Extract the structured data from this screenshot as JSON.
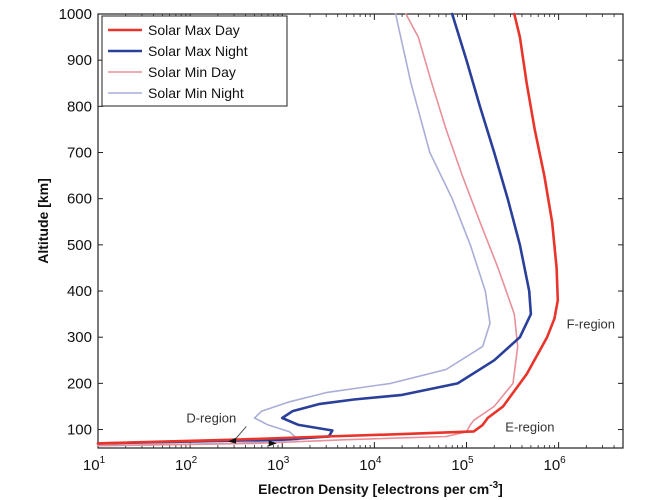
{
  "chart_data": {
    "type": "line",
    "xlabel": "Electron Density [electrons per cm",
    "xlabel_exp": "-3",
    "xlabel_end": "]",
    "ylabel": "Altitude [km]",
    "x_scale": "log",
    "xlim": [
      10,
      5000000
    ],
    "ylim": [
      60,
      1000
    ],
    "x_ticks": [
      {
        "base": "10",
        "exp": "1",
        "value": 10
      },
      {
        "base": "10",
        "exp": "2",
        "value": 100
      },
      {
        "base": "10",
        "exp": "3",
        "value": 1000
      },
      {
        "base": "10",
        "exp": "4",
        "value": 10000
      },
      {
        "base": "10",
        "exp": "5",
        "value": 100000
      },
      {
        "base": "10",
        "exp": "6",
        "value": 1000000
      }
    ],
    "y_ticks": [
      "100",
      "200",
      "300",
      "400",
      "500",
      "600",
      "700",
      "800",
      "900",
      "1000"
    ],
    "grid": false,
    "legend_position": "top-left",
    "series": [
      {
        "name": "Solar Max Day",
        "color": "#e8342a",
        "x": [
          10,
          300,
          3000,
          20000,
          120000,
          150000,
          170000,
          250000,
          450000,
          750000,
          900000,
          980000,
          950000,
          850000,
          700000,
          550000,
          450000,
          380000,
          330000
        ],
        "y": [
          70,
          78,
          85,
          90,
          96,
          110,
          125,
          150,
          220,
          300,
          340,
          380,
          450,
          550,
          650,
          750,
          850,
          950,
          1000
        ]
      },
      {
        "name": "Solar Max Night",
        "color": "#2a3f9a",
        "x": [
          10,
          1000,
          3200,
          3500,
          1500,
          1000,
          1300,
          2500,
          6000,
          20000,
          80000,
          200000,
          380000,
          500000,
          480000,
          380000,
          280000,
          200000,
          140000,
          100000,
          70000
        ],
        "y": [
          70,
          78,
          85,
          98,
          110,
          125,
          140,
          155,
          165,
          175,
          200,
          250,
          300,
          350,
          400,
          500,
          600,
          700,
          800,
          900,
          1000
        ]
      },
      {
        "name": "Solar Min Day",
        "color": "#e8909a",
        "x": [
          10,
          500,
          5000,
          60000,
          100000,
          110000,
          120000,
          200000,
          320000,
          360000,
          330000,
          220000,
          140000,
          90000,
          60000,
          42000,
          30000,
          22000
        ],
        "y": [
          65,
          70,
          78,
          85,
          95,
          110,
          120,
          150,
          200,
          280,
          350,
          450,
          550,
          650,
          750,
          850,
          950,
          1000
        ]
      },
      {
        "name": "Solar Min Night",
        "color": "#a9aed8",
        "x": [
          10,
          300,
          1500,
          1200,
          700,
          500,
          600,
          1200,
          3000,
          15000,
          60000,
          150000,
          180000,
          160000,
          110000,
          70000,
          40000,
          25000,
          17000
        ],
        "y": [
          65,
          70,
          78,
          95,
          110,
          125,
          140,
          160,
          180,
          200,
          230,
          280,
          330,
          400,
          500,
          600,
          700,
          850,
          1000
        ]
      }
    ],
    "annotations": [
      {
        "text": "F-region",
        "x": 1000000,
        "y": 330
      },
      {
        "text": "E-region",
        "x": 160000,
        "y": 100
      },
      {
        "text": "D-region",
        "x": 150,
        "y": 85
      }
    ]
  }
}
